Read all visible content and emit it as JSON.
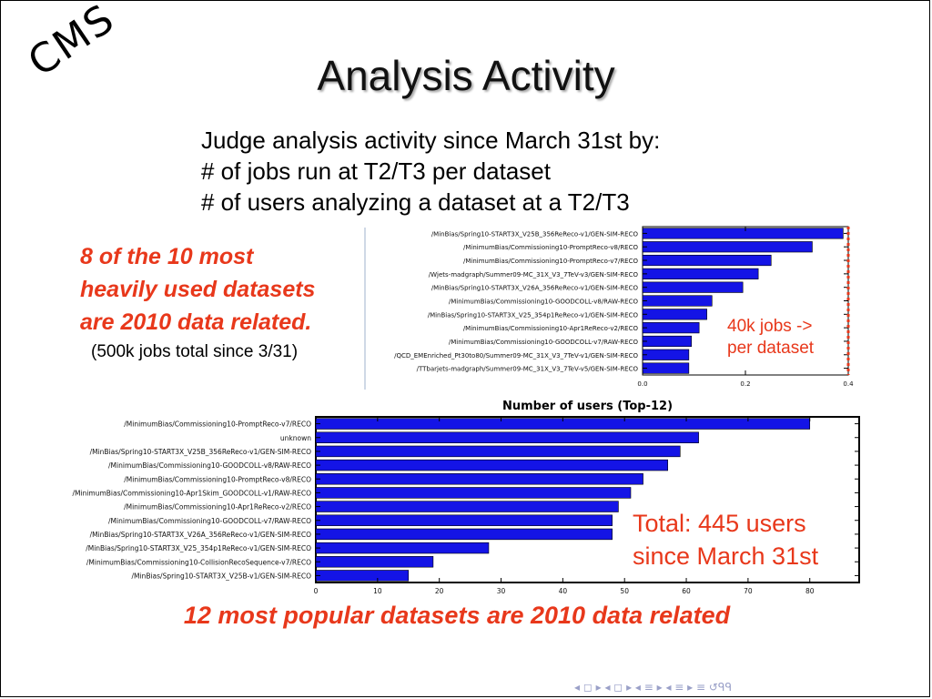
{
  "slide": {
    "logo_text": "CMS",
    "title": "Analysis Activity",
    "intro_lines": [
      "Judge analysis activity since March 31st by:",
      "# of jobs run at T2/T3 per dataset",
      "# of users analyzing a dataset at a T2/T3"
    ],
    "red_note_lines": [
      "8 of the 10 most",
      "heavily used datasets",
      "are 2010 data related."
    ],
    "red_note_sub": "(500k jobs total since 3/31)",
    "chart1_note_lines": [
      "40k jobs ->",
      "per dataset"
    ],
    "chart2_note_lines": [
      "Total: 445 users",
      "since March 31st"
    ],
    "bottom_note": "12 most popular datasets are 2010 data related",
    "nav_glyphs": "◂ ◻ ▸  ◂ ◻ ▸  ◂ ≡ ▸  ◂ ≡ ▸   ≡   ↺ᑫᑫ",
    "colors": {
      "bar": "#1414e6",
      "accent_red": "#e8381b"
    }
  },
  "chart_data": [
    {
      "type": "bar",
      "orientation": "horizontal",
      "title": "",
      "xlabel": "",
      "ylabel": "",
      "xlim": [
        0.0,
        0.4
      ],
      "xticks": [
        "0.0",
        "0.2",
        "0.4"
      ],
      "reference_line": {
        "x": 0.4,
        "style": "dotted",
        "color": "#e8381b"
      },
      "categories": [
        "/MinBias/Spring10-START3X_V25B_356ReReco-v1/GEN-SIM-RECO",
        "/MinimumBias/Commissioning10-PromptReco-v8/RECO",
        "/MinimumBias/Commissioning10-PromptReco-v7/RECO",
        "/Wjets-madgraph/Summer09-MC_31X_V3_7TeV-v3/GEN-SIM-RECO",
        "/MinBias/Spring10-START3X_V26A_356ReReco-v1/GEN-SIM-RECO",
        "/MinimumBias/Commissioning10-GOODCOLL-v8/RAW-RECO",
        "/MinBias/Spring10-START3X_V25_354p1ReReco-v1/GEN-SIM-RECO",
        "/MinimumBias/Commissioning10-Apr1ReReco-v2/RECO",
        "/MinimumBias/Commissioning10-GOODCOLL-v7/RAW-RECO",
        "/QCD_EMEnriched_Pt30to80/Summer09-MC_31X_V3_7TeV-v1/GEN-SIM-RECO",
        "/TTbarjets-madgraph/Summer09-MC_31X_V3_7TeV-v5/GEN-SIM-RECO"
      ],
      "values": [
        0.39,
        0.33,
        0.25,
        0.225,
        0.195,
        0.135,
        0.125,
        0.11,
        0.095,
        0.09,
        0.09
      ]
    },
    {
      "type": "bar",
      "orientation": "horizontal",
      "title": "Number of users (Top-12)",
      "xlabel": "",
      "ylabel": "",
      "xlim": [
        0,
        88
      ],
      "xticks": [
        "0",
        "10",
        "20",
        "30",
        "40",
        "50",
        "60",
        "70",
        "80"
      ],
      "categories": [
        "/MinimumBias/Commissioning10-PromptReco-v7/RECO",
        "unknown",
        "/MinBias/Spring10-START3X_V25B_356ReReco-v1/GEN-SIM-RECO",
        "/MinimumBias/Commissioning10-GOODCOLL-v8/RAW-RECO",
        "/MinimumBias/Commissioning10-PromptReco-v8/RECO",
        "/MinimumBias/Commissioning10-Apr1Skim_GOODCOLL-v1/RAW-RECO",
        "/MinimumBias/Commissioning10-Apr1ReReco-v2/RECO",
        "/MinimumBias/Commissioning10-GOODCOLL-v7/RAW-RECO",
        "/MinBias/Spring10-START3X_V26A_356ReReco-v1/GEN-SIM-RECO",
        "/MinBias/Spring10-START3X_V25_354p1ReReco-v1/GEN-SIM-RECO",
        "/MinimumBias/Commissioning10-CollisionRecoSequence-v7/RECO",
        "/MinBias/Spring10-START3X_V25B-v1/GEN-SIM-RECO"
      ],
      "values": [
        80,
        62,
        59,
        57,
        53,
        51,
        49,
        48,
        48,
        28,
        19,
        15
      ]
    }
  ]
}
